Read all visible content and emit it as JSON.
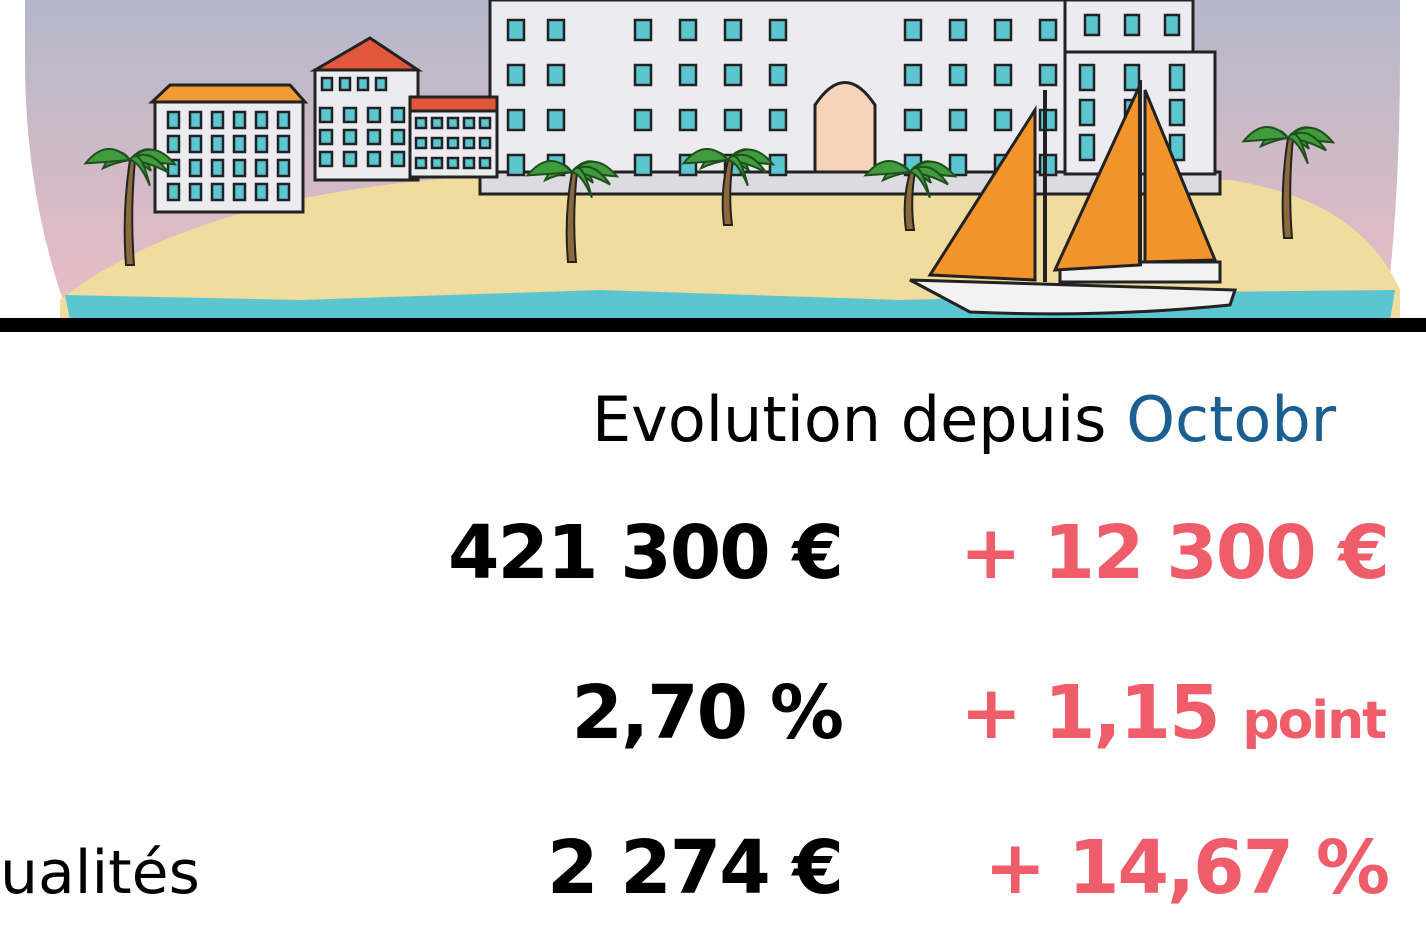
{
  "header": {
    "text": "Evolution depuis",
    "highlight": "Octobr"
  },
  "rows": [
    {
      "value": "421 300 €",
      "change": "+ 12 300 €"
    },
    {
      "value": "2,70 %",
      "change": "+ 1,15",
      "change_unit": "point"
    },
    {
      "label": "ualités",
      "value": "2 274 €",
      "change": "+ 14,67 %"
    }
  ]
}
